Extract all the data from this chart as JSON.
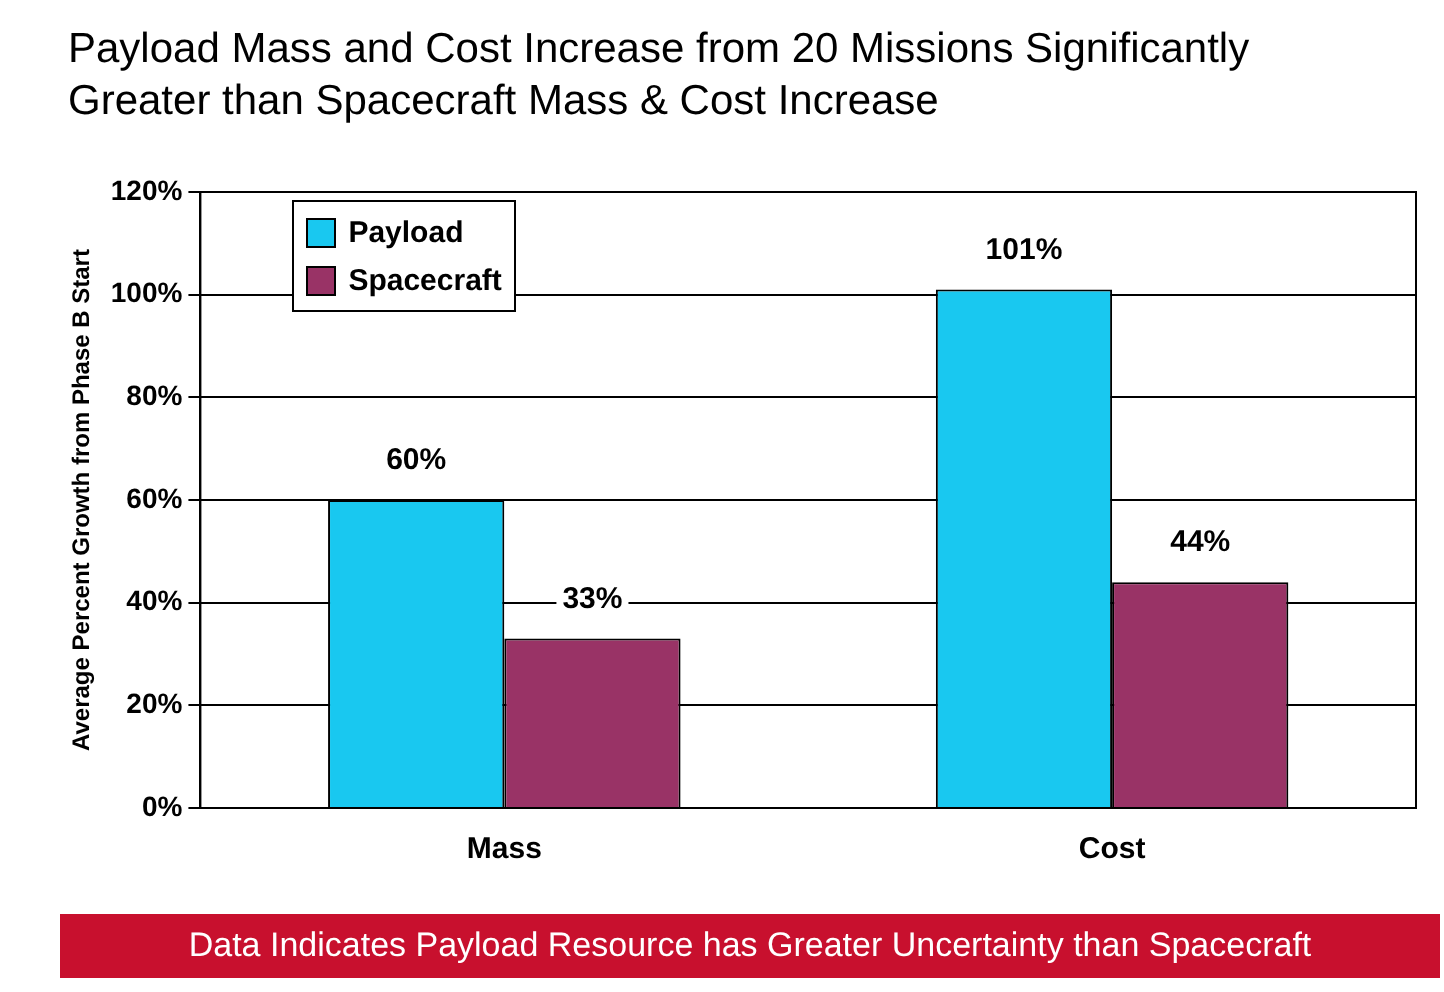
{
  "chart_data": {
    "type": "bar",
    "title": "Payload Mass and Cost Increase from 20 Missions Significantly Greater than Spacecraft Mass & Cost Increase",
    "ylabel": "Average Percent Growth from Phase B Start",
    "categories": [
      "Mass",
      "Cost"
    ],
    "series": [
      {
        "name": "Payload",
        "color": "#19c8f0",
        "values": [
          60,
          101
        ],
        "value_labels": [
          "60%",
          "101%"
        ]
      },
      {
        "name": "Spacecraft",
        "color": "#993366",
        "values": [
          33,
          44
        ],
        "value_labels": [
          "33%",
          "44%"
        ]
      }
    ],
    "ylim": [
      0,
      120
    ],
    "yticks": [
      {
        "value": 0,
        "label": "0%"
      },
      {
        "value": 20,
        "label": "20%"
      },
      {
        "value": 40,
        "label": "40%"
      },
      {
        "value": 60,
        "label": "60%"
      },
      {
        "value": 80,
        "label": "80%"
      },
      {
        "value": 100,
        "label": "100%"
      },
      {
        "value": 120,
        "label": "120%"
      }
    ],
    "grid": "y",
    "legend": "top left",
    "annotations": [
      "Data Indicates Payload Resource has Greater Uncertainty than Spacecraft"
    ]
  }
}
